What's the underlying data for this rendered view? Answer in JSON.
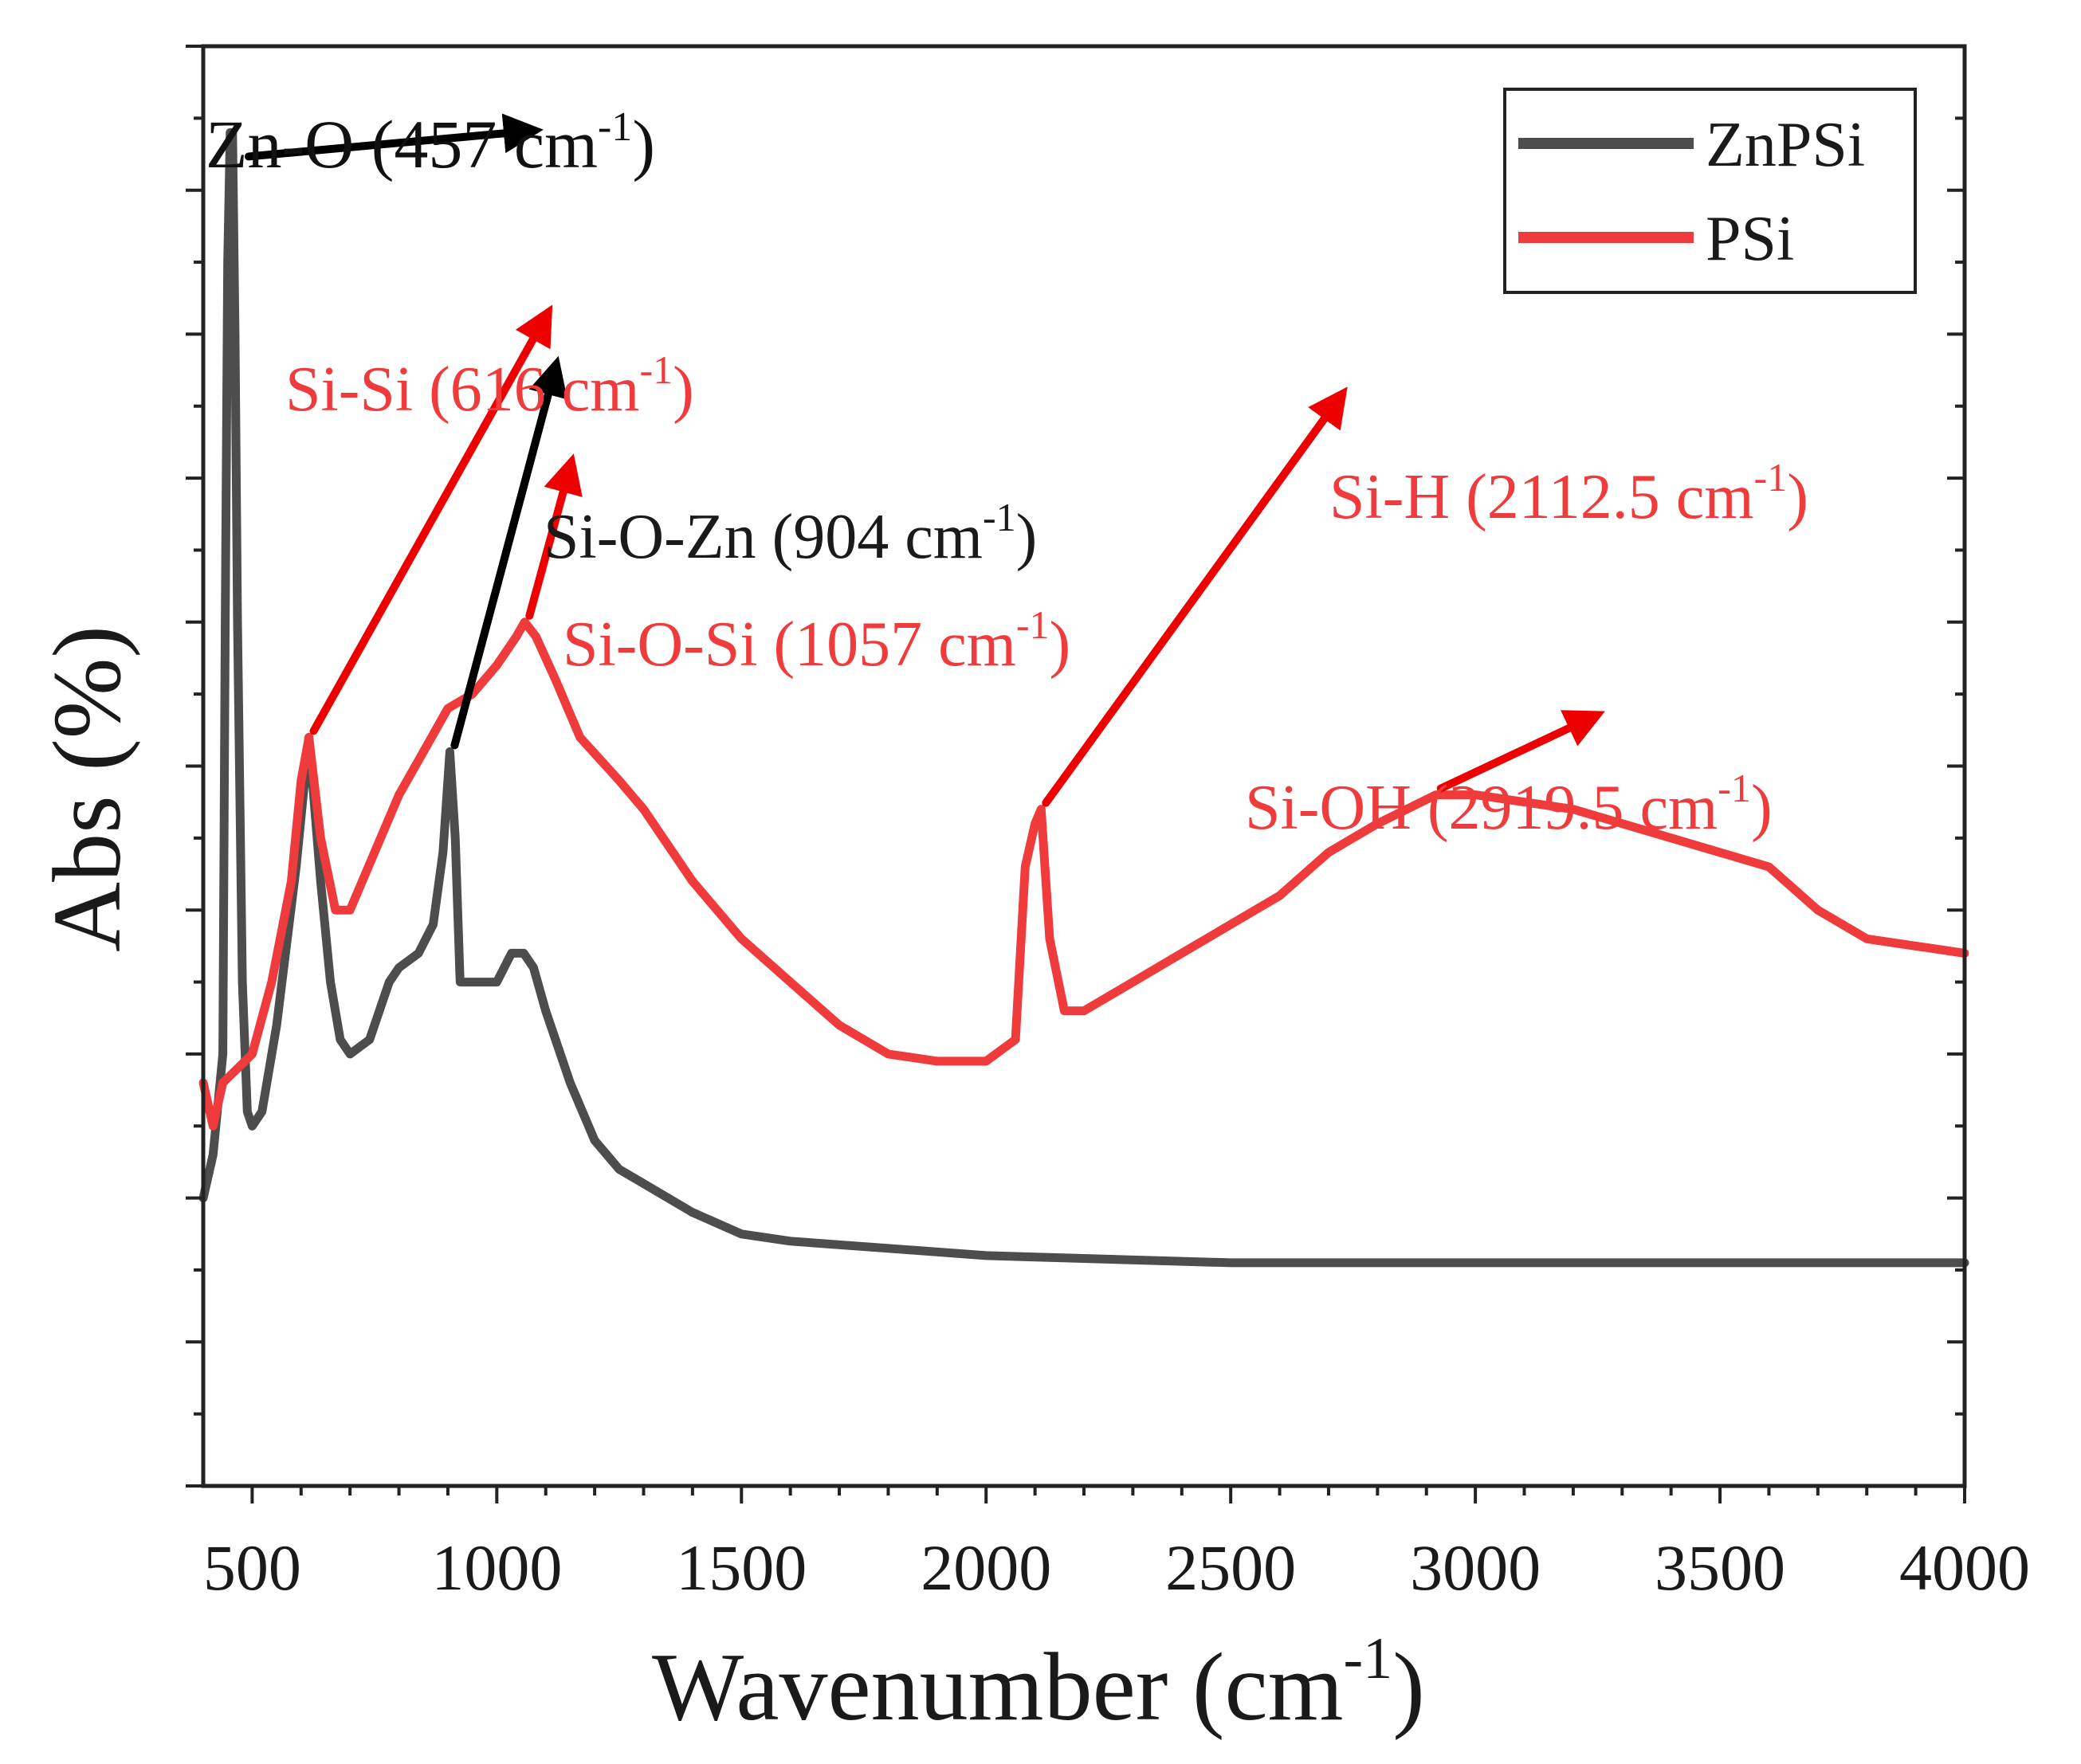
{
  "chart_data": {
    "type": "line",
    "title": "",
    "xlabel": "Wavenumber (cm",
    "xlabel_sup": "-1",
    "xlabel_suffix": ")",
    "ylabel": "Abs (%)",
    "xlim": [
      400,
      4000
    ],
    "ylim": [
      0,
      100
    ],
    "y_tick_labels_shown": false,
    "x_ticks": [
      500,
      1000,
      1500,
      2000,
      2500,
      3000,
      3500,
      4000
    ],
    "grid": false,
    "legend_position": "top-right",
    "series": [
      {
        "name": "ZnPSi",
        "color": "#4d4d4d",
        "points": [
          [
            400,
            20
          ],
          [
            420,
            23
          ],
          [
            440,
            30
          ],
          [
            445,
            60
          ],
          [
            450,
            85
          ],
          [
            455,
            94
          ],
          [
            460,
            94
          ],
          [
            465,
            80
          ],
          [
            470,
            60
          ],
          [
            480,
            35
          ],
          [
            490,
            26
          ],
          [
            500,
            25
          ],
          [
            520,
            26
          ],
          [
            550,
            32
          ],
          [
            590,
            43
          ],
          [
            616,
            52
          ],
          [
            640,
            42
          ],
          [
            660,
            35
          ],
          [
            680,
            31
          ],
          [
            700,
            30
          ],
          [
            740,
            31
          ],
          [
            780,
            35
          ],
          [
            800,
            36
          ],
          [
            840,
            37
          ],
          [
            870,
            39
          ],
          [
            890,
            44
          ],
          [
            904,
            51
          ],
          [
            915,
            45
          ],
          [
            925,
            35
          ],
          [
            950,
            35
          ],
          [
            1000,
            35
          ],
          [
            1030,
            37
          ],
          [
            1055,
            37
          ],
          [
            1075,
            36
          ],
          [
            1100,
            33
          ],
          [
            1150,
            28
          ],
          [
            1200,
            24
          ],
          [
            1250,
            22
          ],
          [
            1300,
            21
          ],
          [
            1400,
            19
          ],
          [
            1500,
            17.5
          ],
          [
            1600,
            17
          ],
          [
            1800,
            16.5
          ],
          [
            2000,
            16
          ],
          [
            2500,
            15.5
          ],
          [
            3000,
            15.5
          ],
          [
            3500,
            15.5
          ],
          [
            4000,
            15.5
          ]
        ]
      },
      {
        "name": "PSi",
        "color": "#ef3b3b",
        "points": [
          [
            400,
            28
          ],
          [
            420,
            25
          ],
          [
            440,
            28
          ],
          [
            470,
            29
          ],
          [
            500,
            30
          ],
          [
            540,
            35
          ],
          [
            580,
            42
          ],
          [
            600,
            49
          ],
          [
            616,
            52
          ],
          [
            640,
            45
          ],
          [
            670,
            40
          ],
          [
            700,
            40
          ],
          [
            750,
            44
          ],
          [
            800,
            48
          ],
          [
            850,
            51
          ],
          [
            900,
            54
          ],
          [
            950,
            55
          ],
          [
            1000,
            57
          ],
          [
            1040,
            59
          ],
          [
            1057,
            60
          ],
          [
            1080,
            59
          ],
          [
            1120,
            56
          ],
          [
            1170,
            52
          ],
          [
            1250,
            49
          ],
          [
            1300,
            47
          ],
          [
            1400,
            42
          ],
          [
            1500,
            38
          ],
          [
            1600,
            35
          ],
          [
            1700,
            32
          ],
          [
            1800,
            30
          ],
          [
            1900,
            29.5
          ],
          [
            2000,
            29.5
          ],
          [
            2060,
            31
          ],
          [
            2080,
            43
          ],
          [
            2100,
            46
          ],
          [
            2112.5,
            47
          ],
          [
            2130,
            38
          ],
          [
            2160,
            33
          ],
          [
            2200,
            33
          ],
          [
            2300,
            35
          ],
          [
            2400,
            37
          ],
          [
            2500,
            39
          ],
          [
            2600,
            41
          ],
          [
            2700,
            44
          ],
          [
            2800,
            46
          ],
          [
            2919.5,
            48
          ],
          [
            2950,
            48
          ],
          [
            3000,
            48
          ],
          [
            3200,
            47
          ],
          [
            3400,
            45
          ],
          [
            3600,
            43
          ],
          [
            3700,
            40
          ],
          [
            3800,
            38
          ],
          [
            4000,
            37
          ]
        ]
      }
    ],
    "annotations": [
      {
        "label": "Zn-O (457 cm",
        "sup": "-1",
        "suffix": ")",
        "x": 457,
        "y": 94,
        "color": "#111111",
        "arrow_color": "#000000"
      },
      {
        "label": "Si-Si (616 cm",
        "sup": "-1",
        "suffix": ")",
        "x": 616,
        "y": 52,
        "color": "#ef3b3b",
        "arrow_color": "#ee0000"
      },
      {
        "label": "Si-O-Zn (904 cm",
        "sup": "-1",
        "suffix": ")",
        "x": 904,
        "y": 51,
        "color": "#1a1a1a",
        "arrow_color": "#000000"
      },
      {
        "label": "Si-O-Si (1057 cm",
        "sup": "-1",
        "suffix": ")",
        "x": 1057,
        "y": 60,
        "color": "#ef3b3b",
        "arrow_color": "#ee0000"
      },
      {
        "label": "Si-H (2112.5 cm",
        "sup": "-1",
        "suffix": ")",
        "x": 2112.5,
        "y": 47,
        "color": "#ef3b3b",
        "arrow_color": "#ee0000"
      },
      {
        "label": "Si-OH (2919.5 cm",
        "sup": "-1",
        "suffix": ")",
        "x": 2919.5,
        "y": 48,
        "color": "#ef3b3b",
        "arrow_color": "#ee0000"
      }
    ]
  }
}
